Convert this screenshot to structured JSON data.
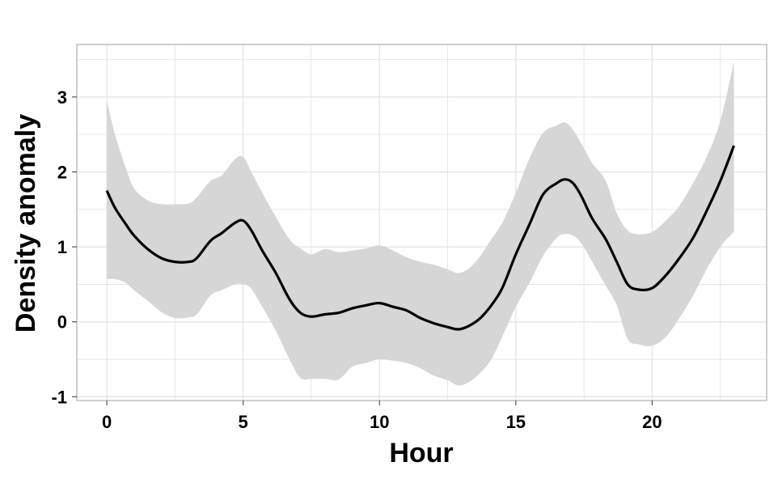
{
  "chart_data": {
    "type": "line",
    "title": "",
    "xlabel": "Hour",
    "ylabel": "Density anomaly",
    "xlim": [
      -1.1,
      24.2
    ],
    "ylim": [
      -1.05,
      3.7
    ],
    "xticks": [
      0,
      5,
      10,
      15,
      20
    ],
    "yticks": [
      -1,
      0,
      1,
      2,
      3
    ],
    "grid": true,
    "legend": "none",
    "colors": {
      "line": "#000000",
      "band": "#d6d6d6",
      "grid": "#e2e2e2",
      "frame": "#bdbdbd"
    },
    "series": [
      {
        "x": [
          0,
          0.3,
          0.7,
          1,
          1.5,
          2,
          2.5,
          3,
          3.3,
          3.8,
          4.2,
          4.7,
          5,
          5.3,
          5.7,
          6.2,
          6.7,
          7.1,
          7.5,
          8,
          8.5,
          9,
          9.5,
          10,
          10.5,
          11,
          11.5,
          12,
          12.5,
          12.9,
          13.3,
          13.7,
          14.1,
          14.5,
          15,
          15.5,
          16,
          16.5,
          16.8,
          17.1,
          17.4,
          17.8,
          18.3,
          18.7,
          19.1,
          19.5,
          20,
          20.5,
          21,
          21.5,
          22,
          22.5,
          23
        ],
        "y": [
          1.75,
          1.52,
          1.3,
          1.15,
          0.97,
          0.85,
          0.8,
          0.8,
          0.85,
          1.08,
          1.18,
          1.32,
          1.35,
          1.22,
          0.95,
          0.65,
          0.3,
          0.12,
          0.07,
          0.1,
          0.12,
          0.18,
          0.22,
          0.25,
          0.2,
          0.15,
          0.05,
          -0.02,
          -0.07,
          -0.1,
          -0.05,
          0.05,
          0.22,
          0.45,
          0.9,
          1.3,
          1.7,
          1.85,
          1.9,
          1.85,
          1.68,
          1.38,
          1.1,
          0.8,
          0.5,
          0.43,
          0.45,
          0.62,
          0.85,
          1.12,
          1.48,
          1.88,
          2.35
        ],
        "ci_upper": [
          2.95,
          2.5,
          2.05,
          1.78,
          1.62,
          1.57,
          1.57,
          1.58,
          1.66,
          1.88,
          1.95,
          2.17,
          2.2,
          2.0,
          1.72,
          1.4,
          1.1,
          0.98,
          0.9,
          0.97,
          0.93,
          0.95,
          0.98,
          1.02,
          0.95,
          0.86,
          0.8,
          0.76,
          0.7,
          0.65,
          0.72,
          0.88,
          1.1,
          1.32,
          1.72,
          2.18,
          2.52,
          2.62,
          2.66,
          2.56,
          2.38,
          2.12,
          1.88,
          1.45,
          1.22,
          1.17,
          1.2,
          1.35,
          1.55,
          1.85,
          2.2,
          2.68,
          3.47
        ],
        "ci_lower": [
          0.57,
          0.57,
          0.52,
          0.42,
          0.28,
          0.13,
          0.05,
          0.06,
          0.1,
          0.35,
          0.42,
          0.5,
          0.5,
          0.44,
          0.2,
          -0.12,
          -0.5,
          -0.75,
          -0.76,
          -0.76,
          -0.77,
          -0.6,
          -0.55,
          -0.5,
          -0.52,
          -0.55,
          -0.62,
          -0.72,
          -0.78,
          -0.85,
          -0.8,
          -0.68,
          -0.5,
          -0.2,
          0.2,
          0.52,
          0.88,
          1.12,
          1.17,
          1.15,
          1.05,
          0.8,
          0.48,
          0.22,
          -0.23,
          -0.3,
          -0.32,
          -0.2,
          0.05,
          0.35,
          0.7,
          1.0,
          1.2
        ]
      }
    ]
  }
}
